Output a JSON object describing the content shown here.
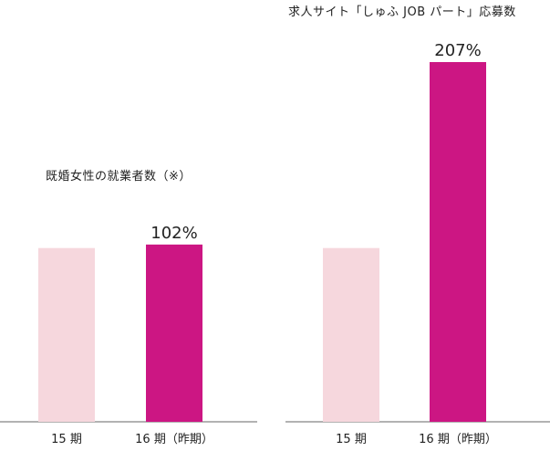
{
  "chart_data": [
    {
      "type": "bar",
      "title": "既婚女性の就業者数（※）",
      "categories": [
        "15 期",
        "16 期（昨期）"
      ],
      "values": [
        100,
        102
      ],
      "data_labels": [
        "",
        "102%"
      ],
      "ylim": [
        0,
        207
      ],
      "colors": [
        "#f6d7dd",
        "#cc1683"
      ],
      "grid": false,
      "legend": "none"
    },
    {
      "type": "bar",
      "title": "求人サイト「しゅふ JOB パート」応募数",
      "categories": [
        "15 期",
        "16 期（昨期）"
      ],
      "values": [
        100,
        207
      ],
      "data_labels": [
        "",
        "207%"
      ],
      "ylim": [
        0,
        207
      ],
      "colors": [
        "#f6d7dd",
        "#cc1683"
      ],
      "grid": false,
      "legend": "none"
    }
  ]
}
